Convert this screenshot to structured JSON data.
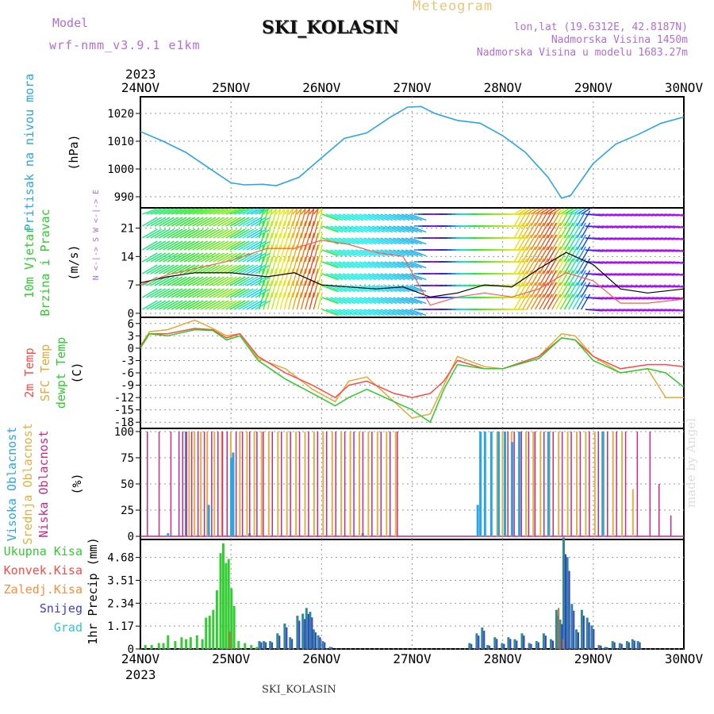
{
  "header": {
    "model_label": "Model",
    "model_name": "wrf-nmm_v3.9.1 e1km",
    "station": "SKI_KOLASIN",
    "chart_kind": "Meteogram",
    "coords": "lon,lat (19.6312E, 42.8187N)",
    "altitude": "Nadmorska Visina 1450m",
    "model_altitude": "Nadmorska Visina u modelu 1683.27m",
    "credit": "made by Angel",
    "bottom_station": "SKI_KOLASIN"
  },
  "colors": {
    "pressure": "#2aa5e6",
    "wind_speed": "#000000",
    "wind_gust": "#ff5a50",
    "temp_2m": "#ff4b46",
    "temp_sfc": "#e6a838",
    "dewpoint": "#2ecb2e",
    "cloud_high": "#2aa5e6",
    "cloud_mid": "#e0b040",
    "cloud_low": "#c8288c",
    "precip_total": "#34cc34",
    "precip_conv": "#ff4b46",
    "precip_frozen": "#ff8c3c",
    "precip_snow": "#3c3cdc",
    "precip_graupel": "#2ec8c8"
  },
  "chart_data": [
    {
      "panel": "pressure",
      "type": "line",
      "label_lines": [
        "Pritisak na nivou mora"
      ],
      "unit": "(hPa)",
      "year": "2023",
      "x_ticks": [
        "24NOV",
        "25NOV",
        "26NOV",
        "27NOV",
        "28NOV",
        "29NOV",
        "30NOV"
      ],
      "y_ticks": [
        990,
        1000,
        1010,
        1020
      ],
      "ylim": [
        986,
        1026
      ],
      "x": [
        0,
        0.25,
        0.5,
        0.75,
        1.0,
        1.15,
        1.35,
        1.5,
        1.75,
        2.0,
        2.25,
        2.5,
        2.75,
        2.95,
        3.1,
        3.25,
        3.5,
        3.75,
        4.0,
        4.25,
        4.5,
        4.6,
        4.65,
        4.75,
        5.0,
        5.25,
        5.5,
        5.75,
        6.0
      ],
      "y": [
        1013.5,
        1010,
        1006,
        1000.5,
        995,
        994.3,
        994.5,
        994,
        997,
        1004,
        1011,
        1013,
        1018.5,
        1022.3,
        1022.5,
        1020,
        1017.5,
        1016.5,
        1012,
        1006,
        997,
        992,
        989.5,
        990.5,
        1002,
        1009,
        1012.5,
        1016.5,
        1018.7
      ]
    },
    {
      "panel": "wind",
      "type": "line",
      "label_lines": [
        "10m Vjetar",
        "Brzina i Pravac"
      ],
      "unit": "(m/s)",
      "y_ticks": [
        0,
        7,
        14,
        21
      ],
      "ylim": [
        -1,
        26
      ],
      "compass": "N <-|-> S   W <-|-> E",
      "series": [
        {
          "name": "speed",
          "x": [
            0,
            0.3,
            0.6,
            1.0,
            1.4,
            1.7,
            2.0,
            2.3,
            2.6,
            2.9,
            3.2,
            3.5,
            3.8,
            4.1,
            4.4,
            4.7,
            5.0,
            5.3,
            5.6,
            6.0
          ],
          "values": [
            7.5,
            9,
            10,
            10,
            9,
            10,
            7,
            6.5,
            6,
            6.5,
            4,
            5,
            7,
            6.5,
            11,
            15,
            12,
            6,
            5,
            6
          ]
        },
        {
          "name": "gust",
          "x": [
            0,
            0.3,
            0.6,
            1.0,
            1.4,
            1.7,
            2.0,
            2.3,
            2.6,
            2.9,
            3.2,
            3.5,
            3.8,
            4.1,
            4.4,
            4.7,
            5.0,
            5.3,
            5.6,
            6.0
          ],
          "values": [
            7,
            9.5,
            11,
            13,
            16,
            16,
            18,
            17,
            15,
            14,
            2,
            4,
            5,
            4,
            6,
            10,
            8,
            2.5,
            2.5,
            3.5
          ]
        }
      ]
    },
    {
      "panel": "temperature",
      "type": "line",
      "label_lines": [
        "2m Temp",
        "SFC Temp",
        "dewpt Temp"
      ],
      "unit": "(C)",
      "y_ticks": [
        6,
        3,
        0,
        -3,
        -6,
        -9,
        -12,
        -15,
        -18
      ],
      "ylim": [
        -19.5,
        7.5
      ],
      "series": [
        {
          "name": "2m Temp",
          "x": [
            0,
            0.1,
            0.3,
            0.6,
            0.8,
            0.95,
            1.1,
            1.3,
            1.6,
            1.9,
            2.15,
            2.3,
            2.5,
            2.8,
            3.0,
            3.2,
            3.35,
            3.5,
            3.8,
            4.0,
            4.4,
            4.65,
            4.8,
            5.0,
            5.3,
            5.6,
            5.8,
            6.0
          ],
          "values": [
            0.5,
            3.5,
            3.5,
            4.8,
            4.5,
            2.5,
            3.5,
            -2,
            -6,
            -9,
            -12,
            -9,
            -8,
            -11,
            -12,
            -11,
            -8,
            -3,
            -5,
            -5,
            -2,
            2.5,
            2,
            -2,
            -5,
            -4,
            -4,
            -4.5
          ]
        },
        {
          "name": "SFC Temp",
          "x": [
            0,
            0.1,
            0.3,
            0.6,
            0.8,
            0.95,
            1.1,
            1.3,
            1.6,
            1.9,
            2.15,
            2.3,
            2.5,
            2.8,
            3.0,
            3.2,
            3.35,
            3.5,
            3.8,
            4.0,
            4.4,
            4.65,
            4.8,
            5.0,
            5.3,
            5.6,
            5.8,
            6.0
          ],
          "values": [
            0.5,
            4,
            4.5,
            6.8,
            4.8,
            3,
            3.5,
            -2.5,
            -5,
            -10,
            -13,
            -8,
            -7,
            -13,
            -17,
            -16,
            -9,
            -2,
            -4.5,
            -5,
            -2,
            3.5,
            3,
            -2,
            -6,
            -5,
            -12,
            -12
          ]
        },
        {
          "name": "dewpt Temp",
          "x": [
            0,
            0.1,
            0.3,
            0.6,
            0.8,
            0.95,
            1.1,
            1.3,
            1.6,
            1.9,
            2.15,
            2.3,
            2.5,
            2.8,
            3.0,
            3.2,
            3.35,
            3.5,
            3.8,
            4.0,
            4.4,
            4.65,
            4.8,
            5.0,
            5.3,
            5.6,
            5.8,
            6.0
          ],
          "values": [
            0,
            3.5,
            3,
            4.5,
            4.3,
            2,
            3,
            -3,
            -7.5,
            -11,
            -14,
            -12,
            -10,
            -13,
            -15,
            -18,
            -10,
            -4,
            -5,
            -5,
            -2.5,
            2.5,
            2,
            -3,
            -6,
            -5,
            -6,
            -9.5
          ]
        }
      ]
    },
    {
      "panel": "clouds",
      "type": "bar",
      "label_lines": [
        "Visoka Oblacnost",
        "Srednja Oblacnost",
        "Niska Oblacnost"
      ],
      "unit": "(%)",
      "y_ticks": [
        0,
        25,
        50,
        75,
        100
      ],
      "ylim": [
        -3,
        103
      ],
      "low_x": [
        0.07,
        0.2,
        0.33,
        0.42,
        0.46,
        0.5,
        0.56,
        0.63,
        0.7,
        0.78,
        0.85,
        0.9,
        0.95,
        1.05,
        1.12,
        1.2,
        1.28,
        1.35,
        1.45,
        1.55,
        1.65,
        1.75,
        1.85,
        1.95,
        2.05,
        2.15,
        2.25,
        2.35,
        2.45,
        2.55,
        2.65,
        2.75,
        2.83,
        4.05,
        4.12,
        4.2,
        4.28,
        4.35,
        4.45,
        4.55,
        4.65,
        4.75,
        4.85,
        4.95,
        5.05,
        5.15,
        5.25,
        5.35,
        5.48,
        5.62,
        5.72,
        5.85
      ],
      "low_values": [
        100,
        100,
        100,
        100,
        100,
        100,
        100,
        100,
        100,
        100,
        100,
        100,
        100,
        100,
        100,
        100,
        100,
        100,
        100,
        100,
        100,
        100,
        100,
        100,
        100,
        100,
        100,
        100,
        100,
        100,
        100,
        100,
        100,
        100,
        100,
        100,
        100,
        100,
        100,
        100,
        100,
        100,
        100,
        100,
        100,
        100,
        100,
        100,
        100,
        100,
        50,
        20
      ],
      "mid_x": [
        0.48,
        0.52,
        0.58,
        0.65,
        0.72,
        0.8,
        0.88,
        0.98,
        1.08,
        1.16,
        1.24,
        1.32,
        1.4,
        1.5,
        1.6,
        1.7,
        1.8,
        1.9,
        2.0,
        2.1,
        2.2,
        2.3,
        2.4,
        2.5,
        2.6,
        2.7,
        2.8,
        3.92,
        3.98,
        4.08,
        4.16,
        4.24,
        4.32,
        4.4,
        4.5,
        4.6,
        4.7,
        4.8,
        4.9,
        5.0,
        5.1,
        5.2,
        5.3,
        5.42
      ],
      "mid_values": [
        100,
        100,
        100,
        100,
        100,
        100,
        100,
        100,
        100,
        100,
        100,
        100,
        100,
        100,
        100,
        100,
        100,
        100,
        100,
        100,
        100,
        100,
        100,
        100,
        100,
        100,
        100,
        100,
        100,
        100,
        100,
        100,
        100,
        100,
        100,
        100,
        100,
        100,
        100,
        100,
        100,
        100,
        100,
        45
      ],
      "high_x": [
        0.3,
        0.5,
        0.75,
        1.0,
        1.02,
        1.2,
        2.45,
        3.72,
        3.75,
        3.8,
        3.87,
        3.95,
        4.02,
        4.1,
        4.18,
        4.5,
        5.1
      ],
      "high_values": [
        3,
        100,
        30,
        75,
        80,
        3,
        3,
        30,
        100,
        100,
        100,
        100,
        100,
        90,
        100,
        100,
        100
      ]
    },
    {
      "panel": "precip",
      "type": "bar",
      "legend": [
        "Ukupna Kisa",
        "Konvek.Kisa",
        "Zaledj.Kisa",
        "Snijeg",
        "Grad"
      ],
      "unit": "1hr Precip (mm)",
      "year": "2023",
      "y_ticks": [
        0,
        1.17,
        2.34,
        3.51,
        4.68
      ],
      "ylim": [
        0,
        5.6
      ],
      "total_x": [
        0.05,
        0.12,
        0.2,
        0.25,
        0.3,
        0.38,
        0.45,
        0.5,
        0.55,
        0.62,
        0.68,
        0.72,
        0.76,
        0.8,
        0.84,
        0.88,
        0.91,
        0.94,
        0.97,
        1.0,
        1.03,
        1.08,
        1.15,
        1.22,
        1.28
      ],
      "total_values": [
        0.2,
        0.2,
        0.3,
        0.3,
        0.7,
        0.4,
        0.6,
        0.5,
        0.6,
        0.7,
        0.5,
        1.6,
        1.7,
        2.0,
        3.0,
        4.9,
        5.4,
        4.4,
        4.6,
        3.1,
        2.2,
        0.4,
        0.3,
        0.2,
        0.1
      ],
      "snow_x": [
        1.3,
        1.35,
        1.42,
        1.5,
        1.58,
        1.64,
        1.72,
        1.78,
        1.82,
        1.86,
        1.9,
        1.95,
        2.0,
        2.08,
        3.62,
        3.7,
        3.76,
        3.82,
        3.9,
        3.98,
        4.05,
        4.12,
        4.2,
        4.28,
        4.36,
        4.44,
        4.52,
        4.58,
        4.62,
        4.66,
        4.7,
        4.75,
        4.8,
        4.86,
        4.92,
        4.97,
        5.05,
        5.12,
        5.2,
        5.28,
        5.36,
        5.42,
        5.48
      ],
      "snow_values": [
        0.4,
        0.4,
        0.4,
        0.8,
        1.3,
        0.6,
        1.7,
        1.8,
        2.1,
        1.9,
        1.0,
        0.7,
        0.4,
        0.1,
        0.3,
        0.8,
        1.1,
        0.2,
        0.6,
        0.3,
        0.6,
        0.5,
        0.8,
        0.3,
        0.4,
        0.8,
        0.5,
        2.0,
        1.5,
        5.7,
        4.7,
        2.3,
        1.0,
        2.0,
        1.6,
        1.2,
        0.2,
        0.1,
        0.4,
        0.3,
        0.4,
        0.5,
        0.4
      ],
      "conv_x": [
        0.97,
        4.6,
        4.65
      ],
      "conv_values": [
        0.9,
        2.1,
        0.5
      ]
    }
  ]
}
